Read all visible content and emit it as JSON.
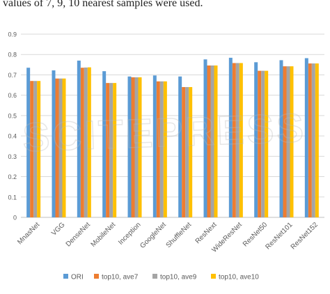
{
  "caption": "values of 7, 9, 10 nearest samples were used.",
  "watermark": "SCITEPRESS SCIENCE AND TECHNOLOGY",
  "colors": {
    "ORI": "#5b9bd5",
    "top10, ave7": "#ed7d31",
    "top10, ave9": "#a5a5a5",
    "top10, ave10": "#ffc000",
    "grid": "#d9d9d9",
    "axis_text": "#595959"
  },
  "chart_data": {
    "type": "bar",
    "title": "",
    "xlabel": "",
    "ylabel": "",
    "ylim": [
      0,
      0.9
    ],
    "yticks": [
      "0",
      "0.1",
      "0.2",
      "0.3",
      "0.4",
      "0.5",
      "0.6",
      "0.7",
      "0.8",
      "0.9"
    ],
    "grid": true,
    "legend_position": "bottom",
    "categories": [
      "MnasNet",
      "VGG",
      "DenseNet",
      "MobileNet",
      "Inception",
      "GoogleNet",
      "ShuffleNet",
      "ResNext",
      "WideResNet",
      "ResNet50",
      "ResNet101",
      "ResNet152"
    ],
    "series": [
      {
        "name": "ORI",
        "values": [
          0.735,
          0.722,
          0.77,
          0.718,
          0.692,
          0.697,
          0.692,
          0.776,
          0.784,
          0.762,
          0.772,
          0.782
        ]
      },
      {
        "name": "top10, ave7",
        "values": [
          0.67,
          0.682,
          0.735,
          0.66,
          0.688,
          0.668,
          0.64,
          0.746,
          0.758,
          0.72,
          0.742,
          0.756
        ]
      },
      {
        "name": "top10, ave9",
        "values": [
          0.67,
          0.682,
          0.736,
          0.66,
          0.688,
          0.668,
          0.64,
          0.746,
          0.758,
          0.72,
          0.742,
          0.756
        ]
      },
      {
        "name": "top10, ave10",
        "values": [
          0.67,
          0.682,
          0.737,
          0.66,
          0.688,
          0.668,
          0.64,
          0.746,
          0.758,
          0.72,
          0.742,
          0.756
        ]
      }
    ]
  }
}
